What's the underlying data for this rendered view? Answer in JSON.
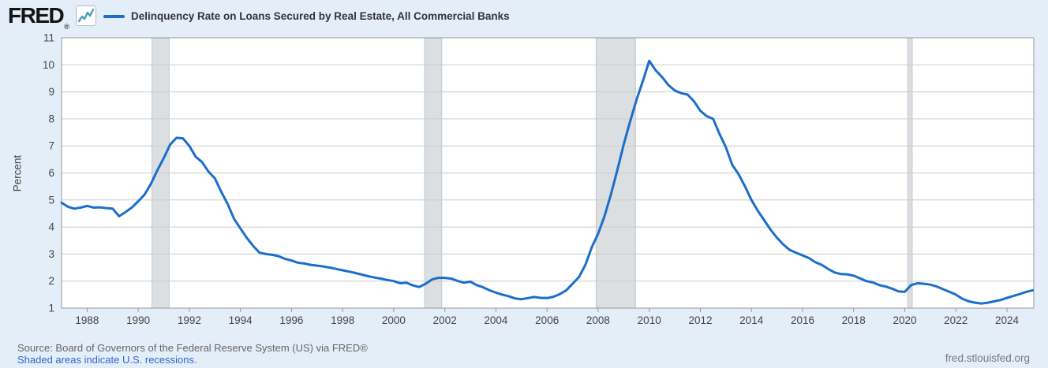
{
  "header": {
    "brand": "FRED",
    "registered_mark": "®",
    "series_title": "Delinquency Rate on Loans Secured by Real Estate, All Commercial Banks"
  },
  "y_axis_label": "Percent",
  "footer": {
    "source_line": "Source: Board of Governors of the Federal Reserve System (US) via FRED®",
    "recession_note": "Shaded areas indicate U.S. recessions.",
    "site_url": "fred.stlouisfed.org"
  },
  "colors": {
    "background": "#e4eef8",
    "plot_background": "#ffffff",
    "line": "#1b6ec9",
    "gridline": "#cccccc",
    "plot_border": "#999999",
    "recession_band": "#dcdfe2",
    "recession_band_edge": "#c2c6cb",
    "axis_text": "#444444",
    "title_text": "#32323f",
    "source_text": "#656565",
    "link": "#3366cc",
    "logo_icon_dark": "#3e93b5",
    "logo_icon_light": "#9fd0e2"
  },
  "chart_data": {
    "type": "line",
    "title": "Delinquency Rate on Loans Secured by Real Estate, All Commercial Banks",
    "xlabel": "",
    "ylabel": "Percent",
    "units": "Percent",
    "frequency": "quarterly",
    "x_start_year": 1987.0,
    "x_step_years": 0.25,
    "xlim": [
      1987.0,
      2025.05
    ],
    "ylim": [
      1,
      11
    ],
    "y_ticks": [
      1,
      2,
      3,
      4,
      5,
      6,
      7,
      8,
      9,
      10,
      11
    ],
    "x_ticks": [
      1988,
      1990,
      1992,
      1994,
      1996,
      1998,
      2000,
      2002,
      2004,
      2006,
      2008,
      2010,
      2012,
      2014,
      2016,
      2018,
      2020,
      2022,
      2024
    ],
    "grid": "horizontal",
    "legend_position": "top",
    "series": [
      {
        "name": "Delinquency Rate on Loans Secured by Real Estate, All Commercial Banks",
        "values": [
          4.9,
          4.75,
          4.68,
          4.72,
          4.78,
          4.72,
          4.73,
          4.7,
          4.68,
          4.4,
          4.55,
          4.72,
          4.95,
          5.2,
          5.6,
          6.1,
          6.55,
          7.05,
          7.3,
          7.28,
          7.0,
          6.6,
          6.4,
          6.05,
          5.8,
          5.3,
          4.85,
          4.3,
          3.95,
          3.6,
          3.3,
          3.05,
          3.0,
          2.97,
          2.92,
          2.82,
          2.76,
          2.68,
          2.65,
          2.6,
          2.57,
          2.54,
          2.5,
          2.45,
          2.4,
          2.35,
          2.3,
          2.24,
          2.18,
          2.13,
          2.09,
          2.04,
          2.0,
          1.92,
          1.94,
          1.84,
          1.78,
          1.9,
          2.06,
          2.12,
          2.12,
          2.09,
          2.01,
          1.94,
          1.98,
          1.85,
          1.77,
          1.66,
          1.57,
          1.5,
          1.44,
          1.36,
          1.33,
          1.37,
          1.41,
          1.38,
          1.37,
          1.42,
          1.52,
          1.66,
          1.9,
          2.15,
          2.6,
          3.25,
          3.75,
          4.4,
          5.2,
          6.1,
          7.05,
          7.9,
          8.7,
          9.4,
          10.15,
          9.8,
          9.55,
          9.25,
          9.05,
          8.95,
          8.9,
          8.65,
          8.3,
          8.1,
          8.0,
          7.45,
          6.95,
          6.3,
          5.95,
          5.5,
          5.0,
          4.6,
          4.25,
          3.9,
          3.6,
          3.35,
          3.15,
          3.05,
          2.95,
          2.85,
          2.7,
          2.6,
          2.45,
          2.32,
          2.26,
          2.25,
          2.2,
          2.1,
          2.0,
          1.95,
          1.85,
          1.8,
          1.72,
          1.62,
          1.6,
          1.85,
          1.92,
          1.9,
          1.87,
          1.8,
          1.7,
          1.6,
          1.5,
          1.35,
          1.25,
          1.2,
          1.17,
          1.2,
          1.25,
          1.3,
          1.38,
          1.45,
          1.52,
          1.6,
          1.66
        ]
      }
    ],
    "recessions": [
      [
        1990.54,
        1991.21
      ],
      [
        2001.21,
        2001.88
      ],
      [
        2007.92,
        2009.46
      ],
      [
        2020.12,
        2020.29
      ]
    ]
  }
}
